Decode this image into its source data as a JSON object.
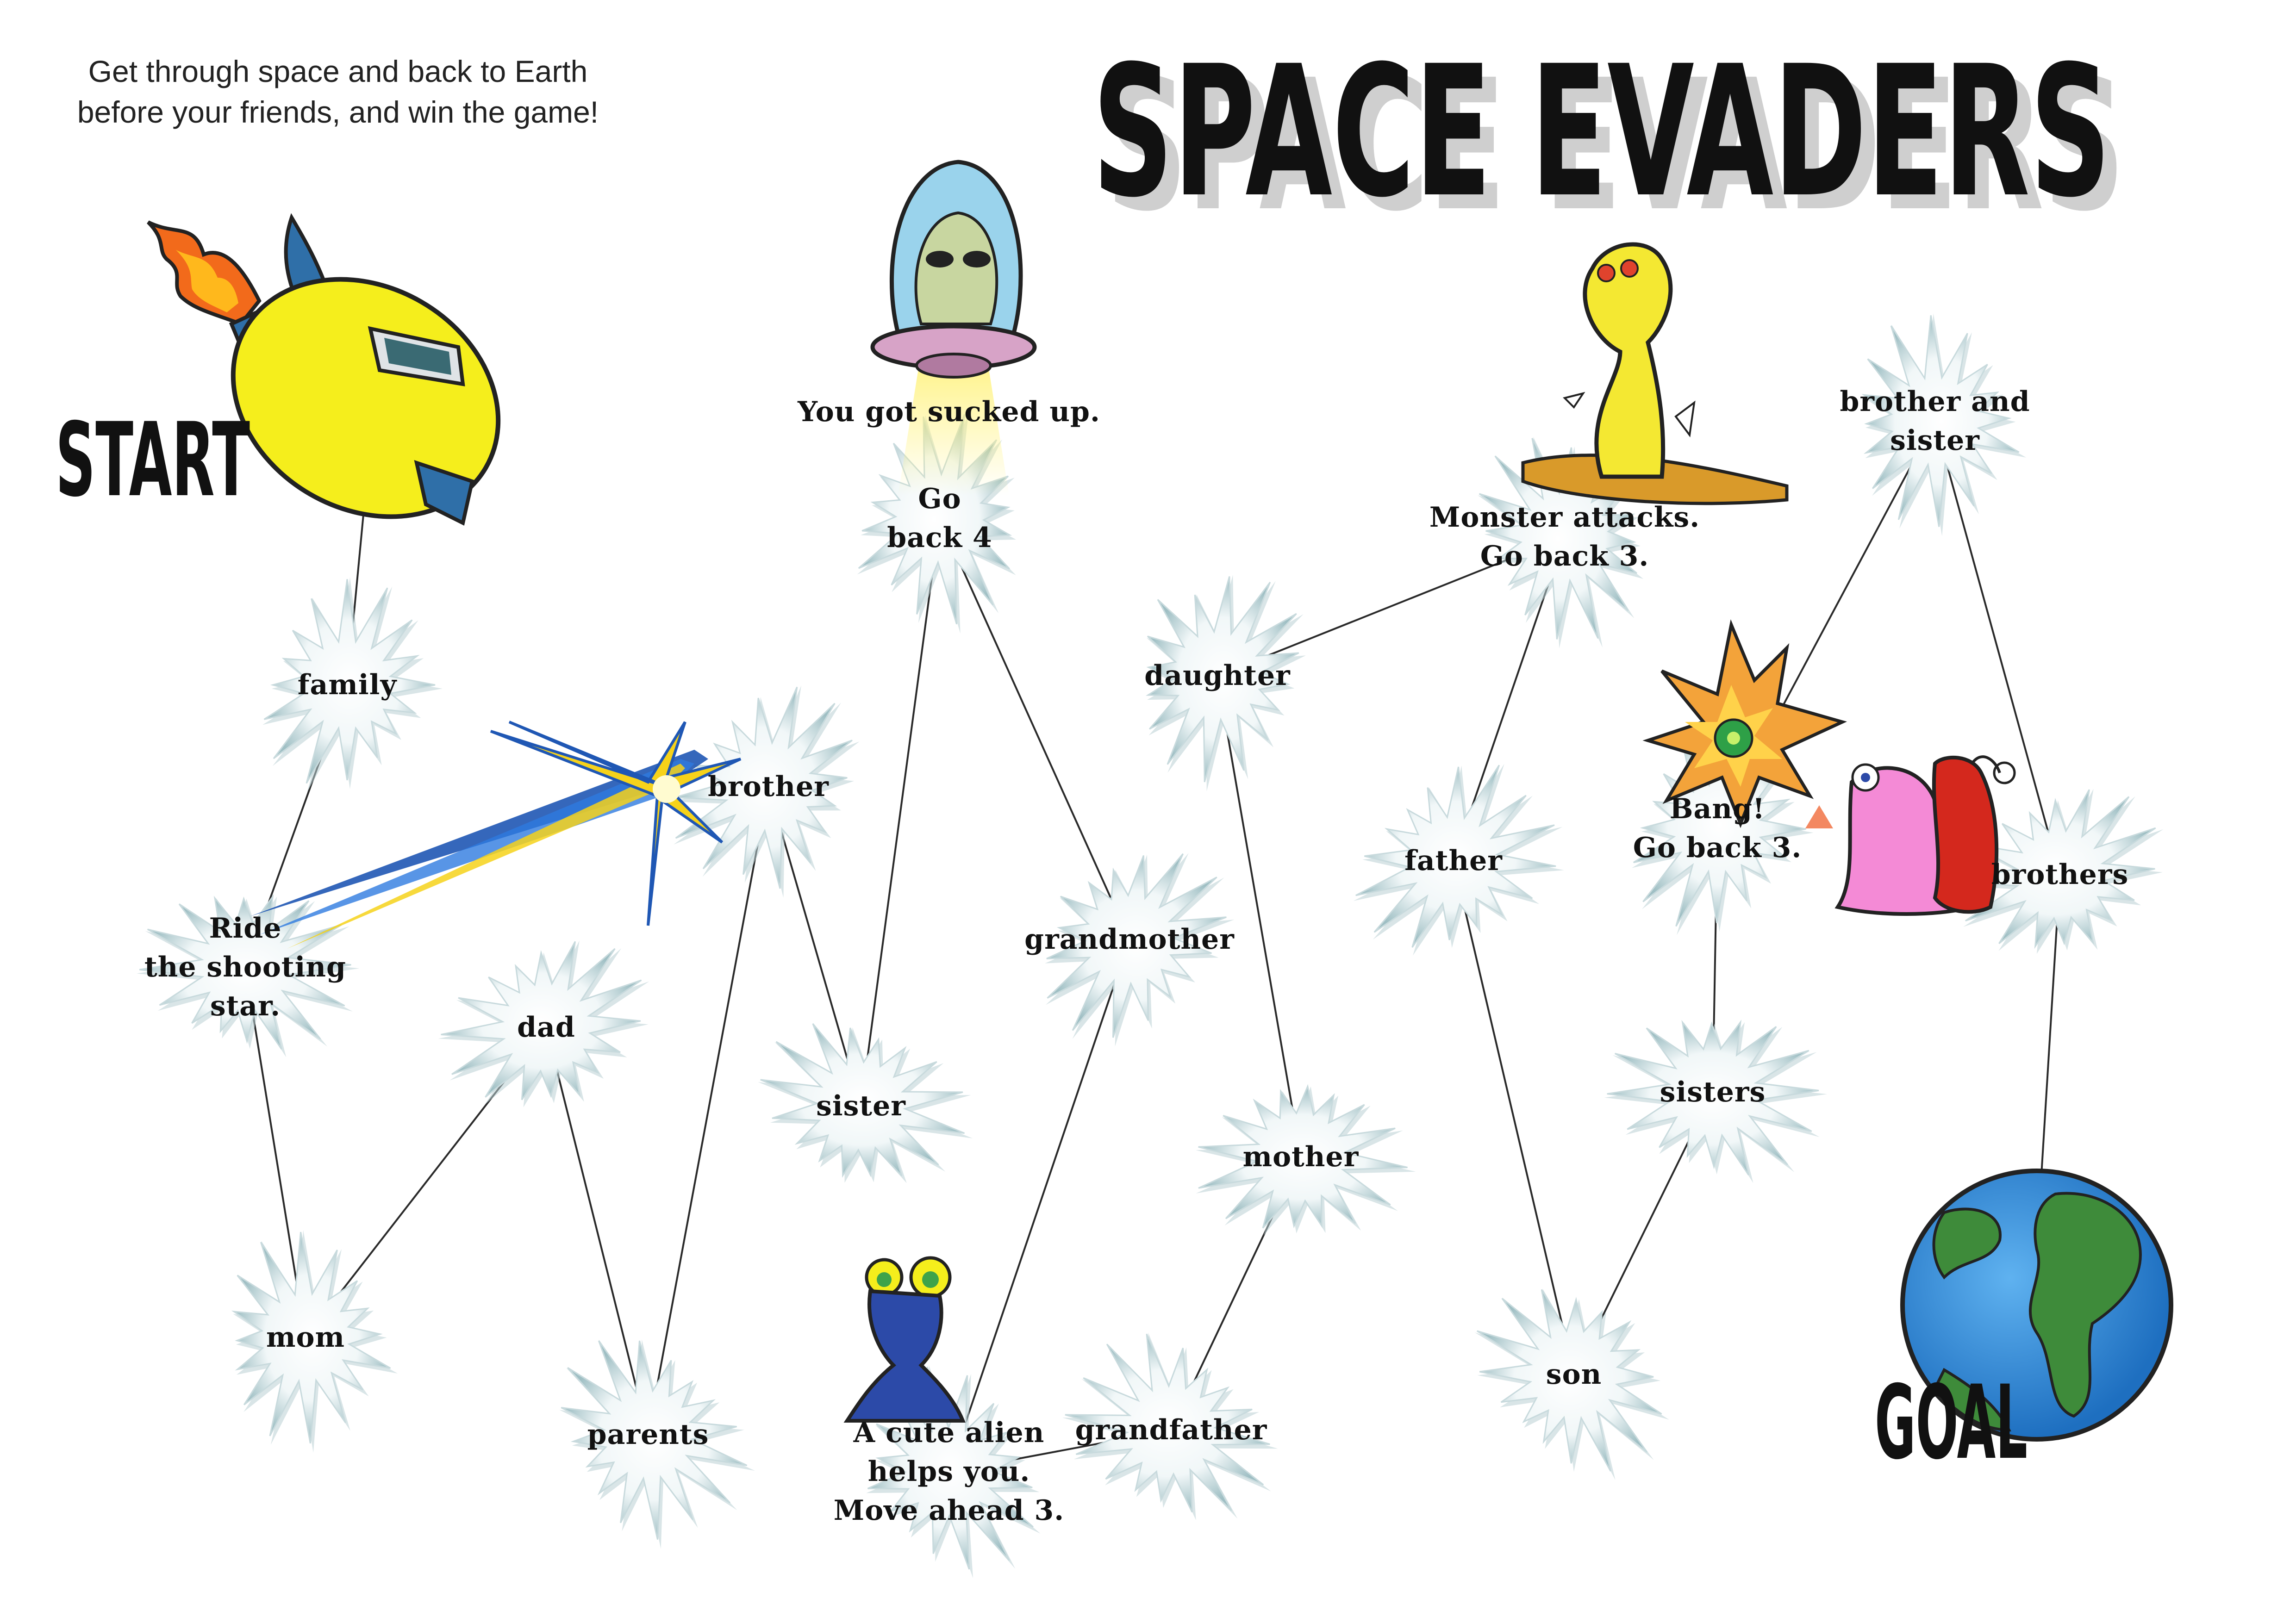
{
  "intro": [
    "Get through space and back to Earth",
    "before your friends, and win the game!"
  ],
  "title": "SPACE EVADERS",
  "start_label": "START",
  "goal_label": "GOAL",
  "nodes": [
    {
      "id": "family",
      "lines": [
        "family"
      ]
    },
    {
      "id": "ride",
      "lines": [
        "Ride",
        "the shooting",
        "star."
      ]
    },
    {
      "id": "mom",
      "lines": [
        "mom"
      ]
    },
    {
      "id": "dad",
      "lines": [
        "dad"
      ]
    },
    {
      "id": "parents",
      "lines": [
        "parents"
      ]
    },
    {
      "id": "brother",
      "lines": [
        "brother"
      ]
    },
    {
      "id": "sister",
      "lines": [
        "sister"
      ]
    },
    {
      "id": "goback4",
      "lines": [
        "Go",
        "back 4"
      ]
    },
    {
      "id": "sucked",
      "lines": [
        "You got sucked up."
      ]
    },
    {
      "id": "alien",
      "lines": [
        "A cute alien",
        "helps you.",
        "Move ahead 3."
      ]
    },
    {
      "id": "grandmother",
      "lines": [
        "grandmother"
      ]
    },
    {
      "id": "grandfather",
      "lines": [
        "grandfather"
      ]
    },
    {
      "id": "daughter",
      "lines": [
        "daughter"
      ]
    },
    {
      "id": "mother",
      "lines": [
        "mother"
      ]
    },
    {
      "id": "monster",
      "lines": [
        "Monster attacks.",
        "Go back 3."
      ]
    },
    {
      "id": "father",
      "lines": [
        "father"
      ]
    },
    {
      "id": "son",
      "lines": [
        "son"
      ]
    },
    {
      "id": "bang",
      "lines": [
        "Bang!",
        "Go back 3."
      ]
    },
    {
      "id": "sisters",
      "lines": [
        "sisters"
      ]
    },
    {
      "id": "brosis",
      "lines": [
        "brother and",
        "sister"
      ]
    },
    {
      "id": "brothers",
      "lines": [
        "brothers"
      ]
    }
  ],
  "edges": [
    [
      "start",
      "family"
    ],
    [
      "family",
      "ride"
    ],
    [
      "ride",
      "mom"
    ],
    [
      "mom",
      "dad"
    ],
    [
      "dad",
      "parents"
    ],
    [
      "parents",
      "brother"
    ],
    [
      "brother",
      "sister"
    ],
    [
      "sister",
      "goback4"
    ],
    [
      "goback4",
      "grandmother"
    ],
    [
      "grandmother",
      "alien"
    ],
    [
      "alien",
      "grandfather"
    ],
    [
      "grandfather",
      "mother"
    ],
    [
      "mother",
      "daughter"
    ],
    [
      "daughter",
      "monster"
    ],
    [
      "monster",
      "father"
    ],
    [
      "father",
      "son"
    ],
    [
      "son",
      "sisters"
    ],
    [
      "sisters",
      "bang"
    ],
    [
      "bang",
      "brosis"
    ],
    [
      "brosis",
      "brothers"
    ],
    [
      "brothers",
      "goal"
    ]
  ],
  "colors": {
    "star_fill": "#f6fafb",
    "star_shadow": "#b9cfd3",
    "line": "#2a2a2a",
    "rocket_body": "#f5ee1c",
    "rocket_wing": "#2f6fa8",
    "flame_outer": "#f26a1b",
    "flame_inner": "#ffb81c",
    "alien_dome": "#9ad3ec",
    "ufo": "#d7a3c7",
    "beam": "#fff27a",
    "monster": "#f4e832",
    "dirt": "#d99a2a",
    "explosion": "#f3a33a",
    "explosion_center": "#2ea047",
    "pink_alien": "#f48ad6",
    "red_alien": "#d4281d",
    "blue_alien": "#2c4aa8",
    "earth_ocean": "#2e86d6",
    "earth_land": "#3e8b3a",
    "shooting_star_yellow": "#f6d21a",
    "shooting_star_blue": "#1f57b4"
  },
  "icons": [
    "rocket-icon",
    "ufo-alien-icon",
    "monster-icon",
    "shooting-star-icon",
    "explosion-icon",
    "pink-alien-icon",
    "red-alien-icon",
    "blue-alien-icon",
    "earth-icon"
  ]
}
